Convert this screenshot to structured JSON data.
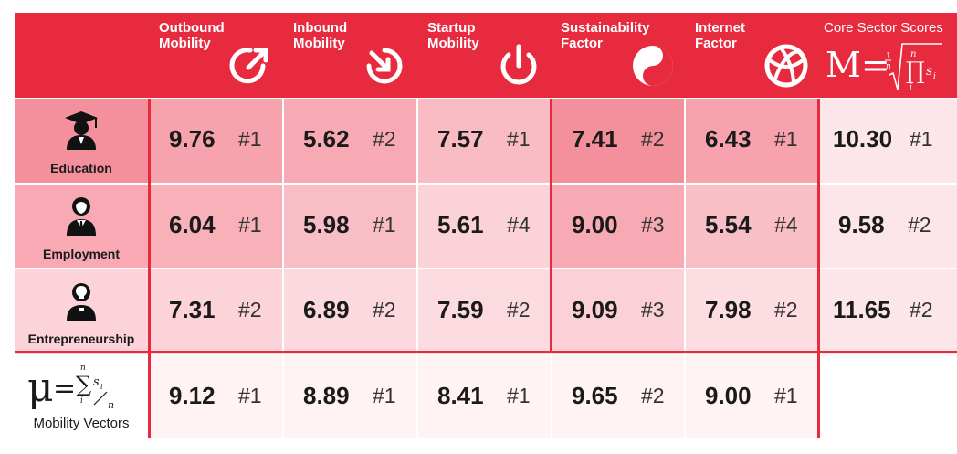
{
  "chart_data": {
    "type": "table",
    "columns": [
      {
        "title": "Outbound\nMobility",
        "icon": "outbound-arrow-icon"
      },
      {
        "title": "Inbound\nMobility",
        "icon": "inbound-arrow-icon"
      },
      {
        "title": "Startup\nMobility",
        "icon": "power-icon"
      },
      {
        "title": "Sustainability\nFactor",
        "icon": "yin-yang-icon"
      },
      {
        "title": "Internet\nFactor",
        "icon": "globe-icon"
      }
    ],
    "core_header": "Core Sector Scores",
    "rows": [
      {
        "label": "Education",
        "icon": "graduate-icon",
        "cells": [
          {
            "v": "9.76",
            "r": "#1"
          },
          {
            "v": "5.62",
            "r": "#2"
          },
          {
            "v": "7.57",
            "r": "#1"
          },
          {
            "v": "7.41",
            "r": "#2"
          },
          {
            "v": "6.43",
            "r": "#1"
          }
        ],
        "core": {
          "v": "10.30",
          "r": "#1"
        }
      },
      {
        "label": "Employment",
        "icon": "employee-icon",
        "cells": [
          {
            "v": "6.04",
            "r": "#1"
          },
          {
            "v": "5.98",
            "r": "#1"
          },
          {
            "v": "5.61",
            "r": "#4"
          },
          {
            "v": "9.00",
            "r": "#3"
          },
          {
            "v": "5.54",
            "r": "#4"
          }
        ],
        "core": {
          "v": "9.58",
          "r": "#2"
        }
      },
      {
        "label": "Entrepreneurship",
        "icon": "entrepreneur-icon",
        "cells": [
          {
            "v": "7.31",
            "r": "#2"
          },
          {
            "v": "6.89",
            "r": "#2"
          },
          {
            "v": "7.59",
            "r": "#2"
          },
          {
            "v": "9.09",
            "r": "#3"
          },
          {
            "v": "7.98",
            "r": "#2"
          }
        ],
        "core": {
          "v": "11.65",
          "r": "#2"
        }
      }
    ],
    "vector_row": {
      "label": "Mobility Vectors",
      "cells": [
        {
          "v": "9.12",
          "r": "#1"
        },
        {
          "v": "8.89",
          "r": "#1"
        },
        {
          "v": "8.41",
          "r": "#1"
        },
        {
          "v": "9.65",
          "r": "#2"
        },
        {
          "v": "9.00",
          "r": "#1"
        }
      ]
    }
  },
  "colors": {
    "accent": "#e82a3f",
    "cell_dark": "#f5939f",
    "cell_mid": "#f8aeb7",
    "cell_light": "#fbd0d6",
    "cell_pale": "#fde5e8",
    "cell_faint": "#fff3f4"
  },
  "cell_shades": [
    [
      "#f7a3ad",
      "#f8aab4",
      "#f9bcc4",
      "#f4909c",
      "#f7a2ac",
      "#fde6e9"
    ],
    [
      "#f8b0b9",
      "#f9bec5",
      "#fbd2d8",
      "#f8aab4",
      "#f9bfc6",
      "#fde6e9"
    ],
    [
      "#fbd3d9",
      "#fcd9de",
      "#fcdbe0",
      "#fbd0d6",
      "#fcdde1",
      "#fde6e9"
    ],
    [
      "#fff3f4",
      "#fff3f4",
      "#fff3f4",
      "#fff3f4",
      "#fff3f4",
      "#ffffff"
    ]
  ],
  "label_shades": [
    "#f4909c",
    "#f8a9b3",
    "#fbd3d9",
    "#ffffff"
  ]
}
